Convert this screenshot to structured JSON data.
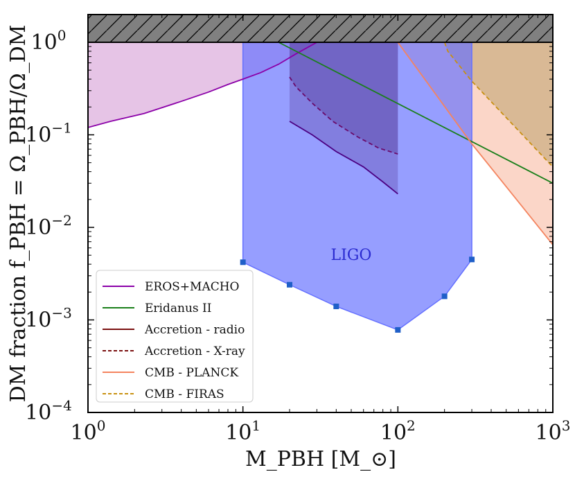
{
  "chart_data": {
    "type": "area",
    "title": "",
    "xlabel": "M_PBH [M_⊙]",
    "ylabel": "DM fraction f_PBH = Ω_PBH/Ω_DM",
    "xscale": "log",
    "yscale": "log",
    "xlim": [
      1,
      1000
    ],
    "ylim": [
      0.0001,
      2
    ],
    "x_ticks": [
      {
        "value": 1,
        "base": "10",
        "exp": "0"
      },
      {
        "value": 10,
        "base": "10",
        "exp": "1"
      },
      {
        "value": 100,
        "base": "10",
        "exp": "2"
      },
      {
        "value": 1000,
        "base": "10",
        "exp": "3"
      }
    ],
    "y_ticks": [
      {
        "value": 0.0001,
        "base": "10",
        "exp": "−4"
      },
      {
        "value": 0.001,
        "base": "10",
        "exp": "−3"
      },
      {
        "value": 0.01,
        "base": "10",
        "exp": "−2"
      },
      {
        "value": 0.1,
        "base": "10",
        "exp": "−1"
      },
      {
        "value": 1,
        "base": "10",
        "exp": "0"
      }
    ],
    "excluded_band": {
      "y_min": 1,
      "y_max": 2,
      "color": "#808080"
    },
    "series": [
      {
        "name": "EROS+MACHO",
        "style": "solid",
        "color": "#8b00a8",
        "fill": "#e6c4e6",
        "x": [
          1,
          1.4,
          2.3,
          4,
          6,
          8,
          10,
          13,
          17,
          22,
          30
        ],
        "y": [
          0.12,
          0.14,
          0.17,
          0.23,
          0.29,
          0.35,
          0.4,
          0.47,
          0.58,
          0.75,
          1
        ]
      },
      {
        "name": "Eridanus II",
        "style": "solid",
        "color": "#1a7f1a",
        "fill": "none",
        "x": [
          17,
          1000
        ],
        "y": [
          1,
          0.03
        ]
      },
      {
        "name": "Accretion - radio",
        "style": "solid",
        "color": "#4b0082",
        "fill": "none",
        "x": [
          20,
          28,
          40,
          60,
          80,
          100
        ],
        "y": [
          0.14,
          0.1,
          0.066,
          0.045,
          0.031,
          0.023
        ]
      },
      {
        "name": "Accretion - X-ray",
        "style": "dashed",
        "color": "#6a0a6a",
        "fill": "none",
        "x": [
          20,
          22,
          28,
          38,
          55,
          75,
          100
        ],
        "y": [
          0.42,
          0.33,
          0.22,
          0.14,
          0.095,
          0.072,
          0.062
        ]
      },
      {
        "name": "CMB - PLANCK",
        "style": "solid",
        "color": "#f4845f",
        "fill": "#fbd6c8",
        "x": [
          100,
          300,
          1000
        ],
        "y": [
          1,
          0.08,
          0.0065
        ]
      },
      {
        "name": "CMB - FIRAS",
        "style": "dashed",
        "color": "#c89010",
        "fill": "#d2b48c",
        "x": [
          200,
          210,
          300,
          1000
        ],
        "y": [
          1,
          0.8,
          0.38,
          0.045
        ]
      }
    ],
    "shaded_regions": [
      {
        "name": "accretion-radio-region",
        "x": [
          20,
          100
        ],
        "color": "#5a3a9a"
      },
      {
        "name": "accretion-xray-region",
        "x": [
          20,
          100
        ],
        "color": "#4b2a8a"
      }
    ],
    "ligo": {
      "label": "LIGO",
      "color": "#6470ff",
      "point_color": "#1f5fc8",
      "points": [
        {
          "x": 10,
          "y": 0.0042
        },
        {
          "x": 20,
          "y": 0.0024
        },
        {
          "x": 40,
          "y": 0.0014
        },
        {
          "x": 100,
          "y": 0.00078
        },
        {
          "x": 200,
          "y": 0.0018
        },
        {
          "x": 300,
          "y": 0.0045
        }
      ]
    },
    "legend": {
      "position": "lower-left",
      "entries": [
        {
          "name": "EROS+MACHO",
          "color": "#8b00a8",
          "style": "solid"
        },
        {
          "name": "Eridanus II",
          "color": "#1a7f1a",
          "style": "solid"
        },
        {
          "name": "Accretion - radio",
          "color": "#7a1010",
          "style": "solid"
        },
        {
          "name": "Accretion - X-ray",
          "color": "#7a1010",
          "style": "dashed"
        },
        {
          "name": "CMB - PLANCK",
          "color": "#f4845f",
          "style": "solid"
        },
        {
          "name": "CMB - FIRAS",
          "color": "#c89010",
          "style": "dashed"
        }
      ]
    }
  }
}
